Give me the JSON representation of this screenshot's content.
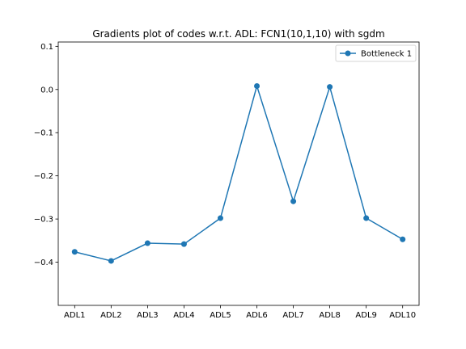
{
  "chart_data": {
    "type": "line",
    "title": "Gradients plot of codes w.r.t. ADL: FCN1(10,1,10) with sgdm",
    "xlabel": "",
    "ylabel": "",
    "categories": [
      "ADL1",
      "ADL2",
      "ADL3",
      "ADL4",
      "ADL5",
      "ADL6",
      "ADL7",
      "ADL8",
      "ADL9",
      "ADL10"
    ],
    "series": [
      {
        "name": "Bottleneck 1",
        "color": "#1f77b4",
        "marker": "circle",
        "values": [
          -0.376,
          -0.397,
          -0.356,
          -0.358,
          -0.298,
          0.008,
          -0.259,
          0.006,
          -0.298,
          -0.347
        ]
      }
    ],
    "ylim": [
      -0.5,
      0.11
    ],
    "yticks": [
      0.1,
      0.0,
      -0.1,
      -0.2,
      -0.3,
      -0.4
    ],
    "ytick_labels": [
      "0.1",
      "0.0",
      "−0.1",
      "−0.2",
      "−0.3",
      "−0.4"
    ],
    "grid": false,
    "legend_position": "top-right"
  }
}
